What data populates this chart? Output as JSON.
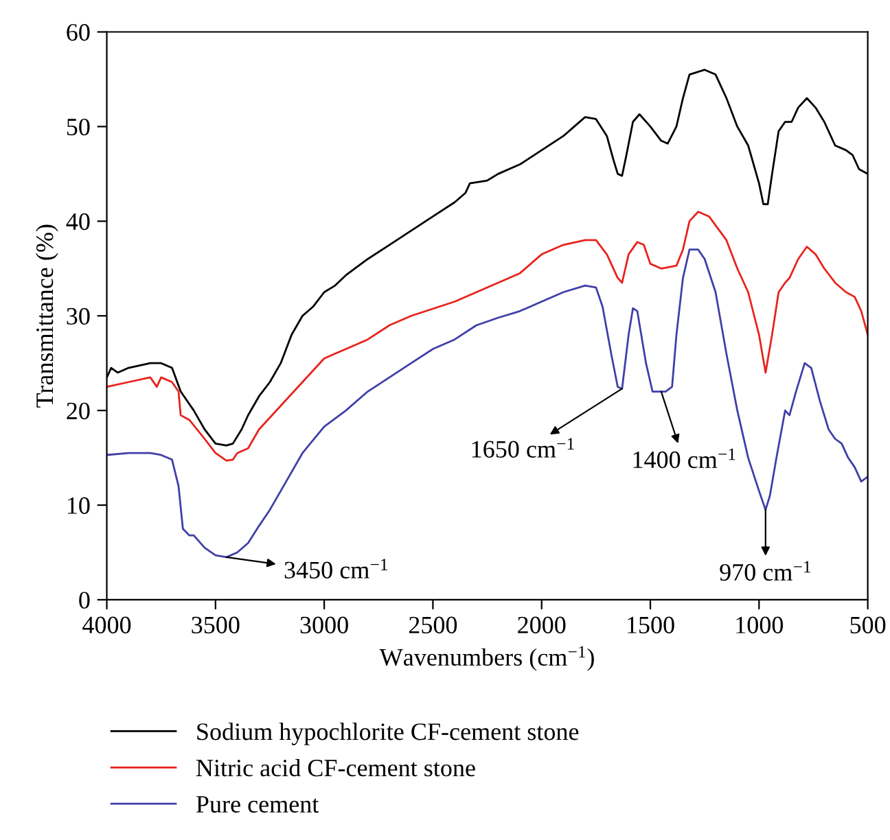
{
  "chart_data": {
    "type": "line",
    "xlabel": "Wavenumbers (cm$^{−1}$)",
    "ylabel": "Transmittance (%)",
    "xlim": [
      4000,
      500
    ],
    "xticks": [
      4000,
      3500,
      3000,
      2500,
      2000,
      1500,
      1000,
      500
    ],
    "ylim": [
      0,
      60
    ],
    "yticks": [
      0,
      10,
      20,
      30,
      40,
      50,
      60
    ],
    "grid": false,
    "legend": "bottom",
    "line_style": "solid",
    "marker": "none",
    "series": [
      {
        "name": "Sodium hypochlorite CF-cement stone",
        "color": "#000000",
        "x": [
          4000,
          3980,
          3950,
          3900,
          3800,
          3750,
          3700,
          3660,
          3600,
          3550,
          3500,
          3450,
          3420,
          3380,
          3350,
          3300,
          3250,
          3200,
          3150,
          3100,
          3050,
          3000,
          2950,
          2900,
          2800,
          2700,
          2600,
          2500,
          2400,
          2350,
          2330,
          2250,
          2200,
          2100,
          2000,
          1900,
          1850,
          1800,
          1750,
          1700,
          1670,
          1650,
          1630,
          1610,
          1580,
          1550,
          1500,
          1450,
          1420,
          1380,
          1350,
          1320,
          1250,
          1200,
          1150,
          1100,
          1050,
          1000,
          980,
          960,
          940,
          910,
          880,
          850,
          820,
          780,
          740,
          700,
          650,
          600,
          570,
          540,
          500
        ],
        "values": [
          23.5,
          24.5,
          24,
          24.5,
          25,
          25,
          24.5,
          22,
          20,
          18,
          16.5,
          16.3,
          16.5,
          18,
          19.5,
          21.5,
          23,
          25,
          28,
          30,
          31,
          32.5,
          33.2,
          34.3,
          36,
          37.5,
          39,
          40.5,
          42,
          43,
          44,
          44.3,
          45,
          46,
          47.5,
          49,
          50,
          51,
          50.8,
          49,
          46.5,
          45,
          44.8,
          47,
          50.5,
          51.3,
          50,
          48.5,
          48.2,
          50,
          53,
          55.5,
          56,
          55.5,
          53,
          50,
          48,
          44,
          41.8,
          41.8,
          45,
          49.5,
          50.5,
          50.5,
          52,
          53,
          52,
          50.5,
          48,
          47.5,
          47,
          45.5,
          45
        ]
      },
      {
        "name": "Nitric acid CF-cement stone",
        "color": "#e8231d",
        "x": [
          4000,
          3900,
          3800,
          3770,
          3750,
          3700,
          3670,
          3660,
          3620,
          3550,
          3500,
          3450,
          3420,
          3400,
          3350,
          3300,
          3200,
          3100,
          3000,
          2900,
          2800,
          2700,
          2600,
          2400,
          2200,
          2100,
          2000,
          1900,
          1800,
          1750,
          1700,
          1650,
          1630,
          1600,
          1560,
          1530,
          1500,
          1450,
          1380,
          1350,
          1320,
          1280,
          1230,
          1150,
          1100,
          1050,
          1000,
          970,
          940,
          910,
          880,
          860,
          820,
          780,
          740,
          700,
          650,
          600,
          560,
          530,
          500
        ],
        "values": [
          22.5,
          23,
          23.5,
          22.5,
          23.5,
          23,
          22,
          19.5,
          19,
          17,
          15.5,
          14.7,
          14.8,
          15.5,
          16,
          18,
          20.5,
          23,
          25.5,
          26.5,
          27.5,
          29,
          30,
          31.5,
          33.5,
          34.5,
          36.5,
          37.5,
          38,
          38,
          36.5,
          34,
          33.5,
          36.5,
          37.8,
          37.5,
          35.5,
          35,
          35.3,
          37,
          40,
          41,
          40.5,
          38,
          35,
          32.5,
          28,
          24,
          28,
          32.5,
          33.5,
          34,
          36,
          37.3,
          36.5,
          35,
          33.5,
          32.5,
          32,
          30.5,
          28
        ]
      },
      {
        "name": "Pure cement",
        "color": "#3f3fa8",
        "x": [
          4000,
          3900,
          3800,
          3750,
          3700,
          3670,
          3650,
          3620,
          3600,
          3550,
          3500,
          3450,
          3400,
          3350,
          3300,
          3250,
          3200,
          3100,
          3000,
          2900,
          2800,
          2700,
          2600,
          2500,
          2400,
          2300,
          2200,
          2100,
          2000,
          1900,
          1800,
          1750,
          1720,
          1680,
          1650,
          1630,
          1600,
          1580,
          1560,
          1520,
          1490,
          1430,
          1400,
          1380,
          1350,
          1320,
          1280,
          1250,
          1200,
          1150,
          1100,
          1050,
          1000,
          970,
          950,
          920,
          880,
          860,
          830,
          790,
          760,
          720,
          680,
          650,
          620,
          590,
          560,
          530,
          500
        ],
        "values": [
          15.3,
          15.5,
          15.5,
          15.3,
          14.8,
          12,
          7.5,
          6.8,
          6.8,
          5.5,
          4.7,
          4.5,
          5,
          6,
          7.8,
          9.5,
          11.5,
          15.5,
          18.3,
          20,
          22,
          23.5,
          25,
          26.5,
          27.5,
          29,
          29.8,
          30.5,
          31.5,
          32.5,
          33.2,
          33,
          31,
          26,
          22.5,
          22.3,
          28,
          30.8,
          30.5,
          25,
          22,
          22,
          22.5,
          28,
          34,
          37,
          37,
          36,
          32.5,
          26,
          20,
          15,
          11.5,
          9.5,
          11,
          15,
          20,
          19.5,
          22,
          25,
          24.5,
          21,
          18,
          17,
          16.5,
          15,
          14,
          12.5,
          13
        ]
      }
    ],
    "annotations": [
      {
        "text": "3450 cm$^{−1}$",
        "x": 3450,
        "y": 4.5
      },
      {
        "text": "1650 cm$^{−1}$",
        "x": 1630,
        "y": 22.3
      },
      {
        "text": "1400 cm$^{−1}$",
        "x": 1450,
        "y": 22
      },
      {
        "text": "970 cm$^{−1}$",
        "x": 970,
        "y": 9.5
      }
    ]
  }
}
